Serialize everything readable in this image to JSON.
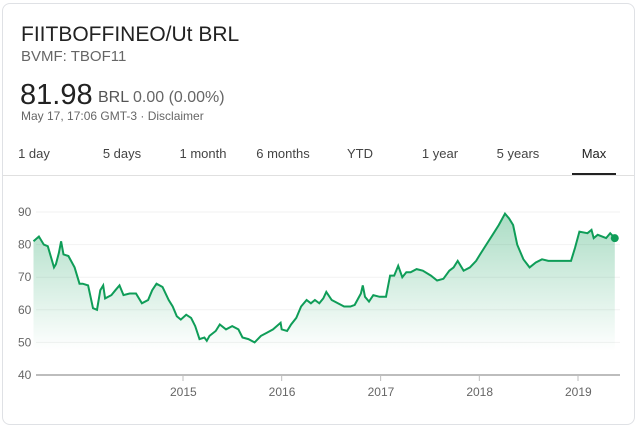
{
  "header": {
    "title": "FIITBOFFINEO/Ut BRL",
    "ticker": "BVMF: TBOF11",
    "price": "81.98",
    "currency": "BRL",
    "change": "0.00 (0.00%)",
    "timestamp": "May 17, 17:06 GMT-3 · Disclaimer"
  },
  "tabs": [
    {
      "label": "1 day"
    },
    {
      "label": "5 days"
    },
    {
      "label": "1 month"
    },
    {
      "label": "6 months"
    },
    {
      "label": "YTD"
    },
    {
      "label": "1 year"
    },
    {
      "label": "5 years"
    },
    {
      "label": "Max",
      "active": true
    }
  ],
  "chart_data": {
    "type": "area",
    "title": "",
    "xlabel": "",
    "ylabel": "",
    "ylim": [
      40,
      90
    ],
    "yticks": [
      "90",
      "80",
      "70",
      "60",
      "50",
      "40"
    ],
    "xticks": [
      "2015",
      "2016",
      "2017",
      "2018",
      "2019"
    ],
    "xlim": [
      "2013-06-27",
      "2019-05-17"
    ],
    "grid": true,
    "colors": {
      "line": "#0f9d58",
      "fill": "#0f9d58"
    },
    "series": [
      {
        "points": [
          [
            "2013-06-27",
            81
          ],
          [
            "2013-07-17",
            82.5
          ],
          [
            "2013-08-04",
            80
          ],
          [
            "2013-08-19",
            79.5
          ],
          [
            "2013-09-11",
            73
          ],
          [
            "2013-09-18",
            74
          ],
          [
            "2013-09-29",
            77.5
          ],
          [
            "2013-10-07",
            81
          ],
          [
            "2013-10-16",
            77
          ],
          [
            "2013-11-03",
            76.5
          ],
          [
            "2013-11-26",
            73
          ],
          [
            "2013-12-14",
            68
          ],
          [
            "2013-12-26",
            68
          ],
          [
            "2014-01-15",
            67.5
          ],
          [
            "2014-02-02",
            60.5
          ],
          [
            "2014-02-17",
            60
          ],
          [
            "2014-03-01",
            66
          ],
          [
            "2014-03-12",
            67.5
          ],
          [
            "2014-03-19",
            63.5
          ],
          [
            "2014-04-11",
            64.5
          ],
          [
            "2014-04-26",
            66
          ],
          [
            "2014-05-11",
            67.5
          ],
          [
            "2014-05-26",
            64.5
          ],
          [
            "2014-06-18",
            65
          ],
          [
            "2014-07-11",
            65
          ],
          [
            "2014-08-02",
            62
          ],
          [
            "2014-08-25",
            63
          ],
          [
            "2014-09-09",
            66
          ],
          [
            "2014-09-25",
            68
          ],
          [
            "2014-10-17",
            67
          ],
          [
            "2014-11-09",
            63
          ],
          [
            "2014-11-24",
            61
          ],
          [
            "2014-12-09",
            58
          ],
          [
            "2014-12-24",
            57
          ],
          [
            "2015-01-13",
            58.5
          ],
          [
            "2015-01-31",
            57.5
          ],
          [
            "2015-02-15",
            55
          ],
          [
            "2015-03-03",
            51
          ],
          [
            "2015-03-21",
            51.5
          ],
          [
            "2015-03-30",
            50.5
          ],
          [
            "2015-04-09",
            52
          ],
          [
            "2015-05-02",
            53.5
          ],
          [
            "2015-05-17",
            55.5
          ],
          [
            "2015-06-09",
            54
          ],
          [
            "2015-07-02",
            55
          ],
          [
            "2015-07-25",
            54
          ],
          [
            "2015-08-09",
            51.5
          ],
          [
            "2015-08-31",
            51
          ],
          [
            "2015-09-23",
            50
          ],
          [
            "2015-10-16",
            52
          ],
          [
            "2015-11-08",
            53
          ],
          [
            "2015-11-30",
            54
          ],
          [
            "2015-12-28",
            56
          ],
          [
            "2016-01-01",
            54
          ],
          [
            "2016-01-21",
            53.5
          ],
          [
            "2016-02-05",
            55.5
          ],
          [
            "2016-02-24",
            57.5
          ],
          [
            "2016-03-13",
            61
          ],
          [
            "2016-04-02",
            63
          ],
          [
            "2016-04-18",
            62
          ],
          [
            "2016-05-03",
            63
          ],
          [
            "2016-05-19",
            62
          ],
          [
            "2016-06-03",
            63.5
          ],
          [
            "2016-06-14",
            65.5
          ],
          [
            "2016-07-04",
            63
          ],
          [
            "2016-07-27",
            62
          ],
          [
            "2016-08-19",
            61
          ],
          [
            "2016-09-11",
            61
          ],
          [
            "2016-09-27",
            61.5
          ],
          [
            "2016-10-20",
            65
          ],
          [
            "2016-10-27",
            67.5
          ],
          [
            "2016-11-04",
            64
          ],
          [
            "2016-11-19",
            62.5
          ],
          [
            "2016-12-05",
            64.5
          ],
          [
            "2016-12-28",
            64
          ],
          [
            "2017-01-21",
            64
          ],
          [
            "2017-02-05",
            70.5
          ],
          [
            "2017-02-20",
            70.5
          ],
          [
            "2017-03-07",
            73.5
          ],
          [
            "2017-03-22",
            70
          ],
          [
            "2017-04-06",
            71.5
          ],
          [
            "2017-04-22",
            71.5
          ],
          [
            "2017-05-14",
            72.5
          ],
          [
            "2017-06-06",
            72
          ],
          [
            "2017-07-06",
            70.5
          ],
          [
            "2017-07-29",
            69
          ],
          [
            "2017-08-21",
            69.5
          ],
          [
            "2017-09-12",
            72
          ],
          [
            "2017-09-28",
            73
          ],
          [
            "2017-10-13",
            75
          ],
          [
            "2017-11-04",
            72
          ],
          [
            "2017-11-27",
            73
          ],
          [
            "2017-12-20",
            75
          ],
          [
            "2018-01-04",
            77
          ],
          [
            "2018-01-27",
            80
          ],
          [
            "2018-02-19",
            83
          ],
          [
            "2018-03-14",
            86
          ],
          [
            "2018-04-06",
            89.5
          ],
          [
            "2018-04-21",
            88
          ],
          [
            "2018-05-06",
            86
          ],
          [
            "2018-05-21",
            80
          ],
          [
            "2018-06-13",
            75.5
          ],
          [
            "2018-07-06",
            73
          ],
          [
            "2018-07-29",
            74.5
          ],
          [
            "2018-08-21",
            75.5
          ],
          [
            "2018-09-13",
            75
          ],
          [
            "2018-10-29",
            75
          ],
          [
            "2018-12-06",
            75
          ],
          [
            "2018-12-21",
            79
          ],
          [
            "2019-01-06",
            84
          ],
          [
            "2019-02-05",
            83.5
          ],
          [
            "2019-02-20",
            84.5
          ],
          [
            "2019-02-28",
            82
          ],
          [
            "2019-03-15",
            83
          ],
          [
            "2019-04-15",
            82
          ],
          [
            "2019-04-30",
            83.5
          ],
          [
            "2019-05-17",
            81.98
          ]
        ]
      }
    ]
  }
}
